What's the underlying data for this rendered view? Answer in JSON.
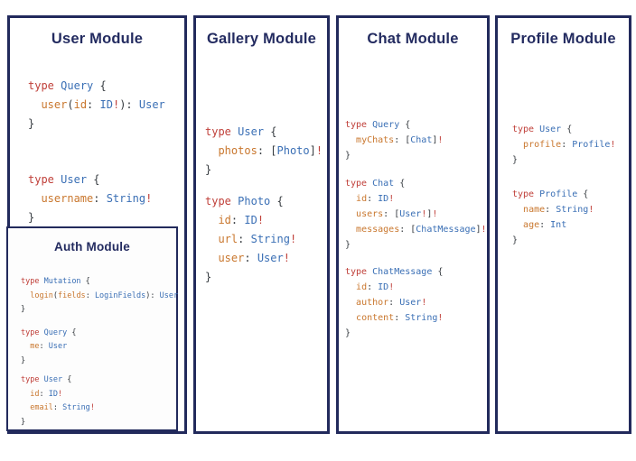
{
  "colors": {
    "panel_border": "#222a5c",
    "title_navy": "#232b60",
    "code_keyword_red": "#c0403a",
    "code_type_blue": "#3a6fb5",
    "code_field_orange": "#c9772e",
    "code_punct_dark": "#373c41"
  },
  "panels": [
    {
      "title": "User Module",
      "blocks": [
        [
          [
            [
              "k",
              "type"
            ],
            [
              "p",
              " "
            ],
            [
              "t",
              "Query"
            ],
            [
              "p",
              " {"
            ]
          ],
          [
            [
              "p",
              "  "
            ],
            [
              "f",
              "user"
            ],
            [
              "p",
              "("
            ],
            [
              "f",
              "id"
            ],
            [
              "p",
              ": "
            ],
            [
              "t",
              "ID"
            ],
            [
              "e",
              "!"
            ],
            [
              "p",
              "): "
            ],
            [
              "t",
              "User"
            ]
          ],
          [
            [
              "p",
              "}"
            ]
          ]
        ],
        [
          [
            [
              "k",
              "type"
            ],
            [
              "p",
              " "
            ],
            [
              "t",
              "User"
            ],
            [
              "p",
              " {"
            ]
          ],
          [
            [
              "p",
              "  "
            ],
            [
              "f",
              "username"
            ],
            [
              "p",
              ": "
            ],
            [
              "t",
              "String"
            ],
            [
              "e",
              "!"
            ]
          ],
          [
            [
              "p",
              "}"
            ]
          ]
        ]
      ],
      "nested": {
        "title": "Auth Module",
        "blocks": [
          [
            [
              [
                "k",
                "type"
              ],
              [
                "p",
                " "
              ],
              [
                "t",
                "Mutation"
              ],
              [
                "p",
                " {"
              ]
            ],
            [
              [
                "p",
                "  "
              ],
              [
                "f",
                "login"
              ],
              [
                "p",
                "("
              ],
              [
                "f",
                "fields"
              ],
              [
                "p",
                ": "
              ],
              [
                "t",
                "LoginFields"
              ],
              [
                "p",
                "): "
              ],
              [
                "t",
                "User"
              ]
            ],
            [
              [
                "p",
                "}"
              ]
            ]
          ],
          [
            [
              [
                "k",
                "type"
              ],
              [
                "p",
                " "
              ],
              [
                "t",
                "Query"
              ],
              [
                "p",
                " {"
              ]
            ],
            [
              [
                "p",
                "  "
              ],
              [
                "f",
                "me"
              ],
              [
                "p",
                ": "
              ],
              [
                "t",
                "User"
              ]
            ],
            [
              [
                "p",
                "}"
              ]
            ]
          ],
          [
            [
              [
                "k",
                "type"
              ],
              [
                "p",
                " "
              ],
              [
                "t",
                "User"
              ],
              [
                "p",
                " {"
              ]
            ],
            [
              [
                "p",
                "  "
              ],
              [
                "f",
                "id"
              ],
              [
                "p",
                ": "
              ],
              [
                "t",
                "ID"
              ],
              [
                "e",
                "!"
              ]
            ],
            [
              [
                "p",
                "  "
              ],
              [
                "f",
                "email"
              ],
              [
                "p",
                ": "
              ],
              [
                "t",
                "String"
              ],
              [
                "e",
                "!"
              ]
            ],
            [
              [
                "p",
                "}"
              ]
            ]
          ]
        ]
      }
    },
    {
      "title": "Gallery Module",
      "blocks": [
        [
          [
            [
              "k",
              "type"
            ],
            [
              "p",
              " "
            ],
            [
              "t",
              "User"
            ],
            [
              "p",
              " {"
            ]
          ],
          [
            [
              "p",
              "  "
            ],
            [
              "f",
              "photos"
            ],
            [
              "p",
              ": ["
            ],
            [
              "t",
              "Photo"
            ],
            [
              "p",
              "]"
            ],
            [
              "e",
              "!"
            ]
          ],
          [
            [
              "p",
              "}"
            ]
          ]
        ],
        [
          [
            [
              "k",
              "type"
            ],
            [
              "p",
              " "
            ],
            [
              "t",
              "Photo"
            ],
            [
              "p",
              " {"
            ]
          ],
          [
            [
              "p",
              "  "
            ],
            [
              "f",
              "id"
            ],
            [
              "p",
              ": "
            ],
            [
              "t",
              "ID"
            ],
            [
              "e",
              "!"
            ]
          ],
          [
            [
              "p",
              "  "
            ],
            [
              "f",
              "url"
            ],
            [
              "p",
              ": "
            ],
            [
              "t",
              "String"
            ],
            [
              "e",
              "!"
            ]
          ],
          [
            [
              "p",
              "  "
            ],
            [
              "f",
              "user"
            ],
            [
              "p",
              ": "
            ],
            [
              "t",
              "User"
            ],
            [
              "e",
              "!"
            ]
          ],
          [
            [
              "p",
              "}"
            ]
          ]
        ]
      ]
    },
    {
      "title": "Chat Module",
      "blocks": [
        [
          [
            [
              "k",
              "type"
            ],
            [
              "p",
              " "
            ],
            [
              "t",
              "Query"
            ],
            [
              "p",
              " {"
            ]
          ],
          [
            [
              "p",
              "  "
            ],
            [
              "f",
              "myChats"
            ],
            [
              "p",
              ": ["
            ],
            [
              "t",
              "Chat"
            ],
            [
              "p",
              "]"
            ],
            [
              "e",
              "!"
            ]
          ],
          [
            [
              "p",
              "}"
            ]
          ]
        ],
        [
          [
            [
              "k",
              "type"
            ],
            [
              "p",
              " "
            ],
            [
              "t",
              "Chat"
            ],
            [
              "p",
              " {"
            ]
          ],
          [
            [
              "p",
              "  "
            ],
            [
              "f",
              "id"
            ],
            [
              "p",
              ": "
            ],
            [
              "t",
              "ID"
            ],
            [
              "e",
              "!"
            ]
          ],
          [
            [
              "p",
              "  "
            ],
            [
              "f",
              "users"
            ],
            [
              "p",
              ": ["
            ],
            [
              "t",
              "User"
            ],
            [
              "e",
              "!"
            ],
            [
              "p",
              "]"
            ],
            [
              "e",
              "!"
            ]
          ],
          [
            [
              "p",
              "  "
            ],
            [
              "f",
              "messages"
            ],
            [
              "p",
              ": ["
            ],
            [
              "t",
              "ChatMessage"
            ],
            [
              "p",
              "]"
            ],
            [
              "e",
              "!"
            ]
          ],
          [
            [
              "p",
              "}"
            ]
          ]
        ],
        [
          [
            [
              "k",
              "type"
            ],
            [
              "p",
              " "
            ],
            [
              "t",
              "ChatMessage"
            ],
            [
              "p",
              " {"
            ]
          ],
          [
            [
              "p",
              "  "
            ],
            [
              "f",
              "id"
            ],
            [
              "p",
              ": "
            ],
            [
              "t",
              "ID"
            ],
            [
              "e",
              "!"
            ]
          ],
          [
            [
              "p",
              "  "
            ],
            [
              "f",
              "author"
            ],
            [
              "p",
              ": "
            ],
            [
              "t",
              "User"
            ],
            [
              "e",
              "!"
            ]
          ],
          [
            [
              "p",
              "  "
            ],
            [
              "f",
              "content"
            ],
            [
              "p",
              ": "
            ],
            [
              "t",
              "String"
            ],
            [
              "e",
              "!"
            ]
          ],
          [
            [
              "p",
              "}"
            ]
          ]
        ]
      ]
    },
    {
      "title": "Profile Module",
      "blocks": [
        [
          [
            [
              "k",
              "type"
            ],
            [
              "p",
              " "
            ],
            [
              "t",
              "User"
            ],
            [
              "p",
              " {"
            ]
          ],
          [
            [
              "p",
              "  "
            ],
            [
              "f",
              "profile"
            ],
            [
              "p",
              ": "
            ],
            [
              "t",
              "Profile"
            ],
            [
              "e",
              "!"
            ]
          ],
          [
            [
              "p",
              "}"
            ]
          ]
        ],
        [
          [
            [
              "k",
              "type"
            ],
            [
              "p",
              " "
            ],
            [
              "t",
              "Profile"
            ],
            [
              "p",
              " {"
            ]
          ],
          [
            [
              "p",
              "  "
            ],
            [
              "f",
              "name"
            ],
            [
              "p",
              ": "
            ],
            [
              "t",
              "String"
            ],
            [
              "e",
              "!"
            ]
          ],
          [
            [
              "p",
              "  "
            ],
            [
              "f",
              "age"
            ],
            [
              "p",
              ": "
            ],
            [
              "t",
              "Int"
            ]
          ],
          [
            [
              "p",
              "}"
            ]
          ]
        ]
      ]
    }
  ]
}
